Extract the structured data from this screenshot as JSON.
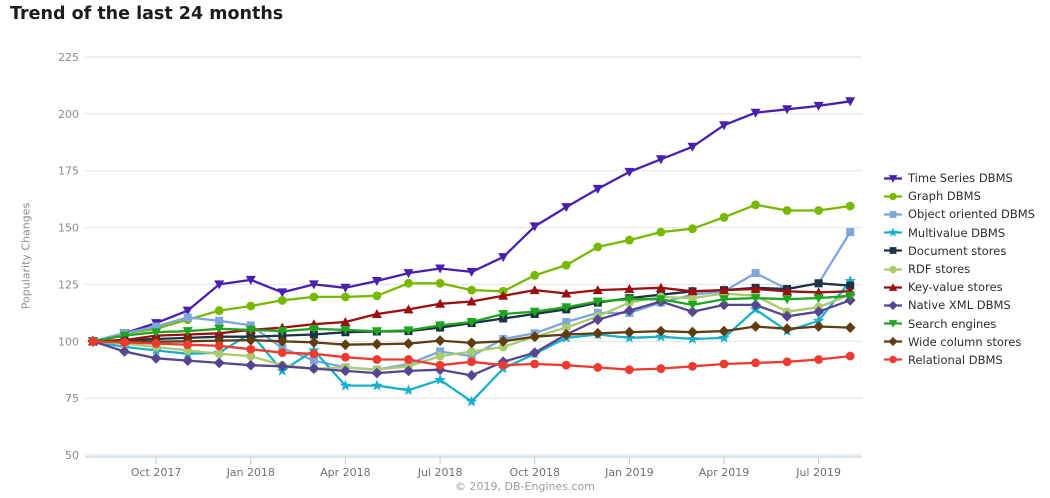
{
  "title": "Trend of the last 24 months",
  "footer": "© 2019, DB-Engines.com",
  "chart_data": {
    "type": "line",
    "title": "Trend of the last 24 months",
    "xlabel": "",
    "ylabel": "Popularity Changes",
    "ylim": [
      50,
      225
    ],
    "grid": true,
    "legend_position": "right",
    "y_ticks": [
      225,
      200,
      175,
      150,
      125,
      100,
      75,
      50
    ],
    "x": [
      "Aug 2017",
      "Sep 2017",
      "Oct 2017",
      "Nov 2017",
      "Dec 2017",
      "Jan 2018",
      "Feb 2018",
      "Mar 2018",
      "Apr 2018",
      "May 2018",
      "Jun 2018",
      "Jul 2018",
      "Aug 2018",
      "Sep 2018",
      "Oct 2018",
      "Nov 2018",
      "Dec 2018",
      "Jan 2019",
      "Feb 2019",
      "Mar 2019",
      "Apr 2019",
      "May 2019",
      "Jun 2019",
      "Jul 2019",
      "Aug 2019"
    ],
    "x_ticks": [
      {
        "i": 2,
        "label": "Oct 2017"
      },
      {
        "i": 5,
        "label": "Jan 2018"
      },
      {
        "i": 8,
        "label": "Apr 2018"
      },
      {
        "i": 11,
        "label": "Jul 2018"
      },
      {
        "i": 14,
        "label": "Oct 2018"
      },
      {
        "i": 17,
        "label": "Jan 2019"
      },
      {
        "i": 20,
        "label": "Apr 2019"
      },
      {
        "i": 23,
        "label": "Jul 2019"
      }
    ],
    "series": [
      {
        "name": "Time Series DBMS",
        "color": "#4a1fad",
        "marker": "triangle-down",
        "values": [
          100,
          103.5,
          108,
          113.5,
          125,
          127,
          121.5,
          125,
          123.5,
          126.5,
          130,
          132,
          130.5,
          137,
          150.5,
          159,
          167,
          174.5,
          180,
          185.5,
          195,
          200.5,
          202,
          203.5,
          205.5
        ]
      },
      {
        "name": "Graph DBMS",
        "color": "#76b900",
        "marker": "circle",
        "values": [
          100,
          103.5,
          105.5,
          109.5,
          113.5,
          115.5,
          118,
          119.5,
          119.5,
          120,
          125.5,
          125.5,
          122.5,
          122,
          129,
          133.5,
          141.5,
          144.5,
          148,
          149.5,
          154.5,
          160,
          157.5,
          157.5,
          159.5
        ]
      },
      {
        "name": "Object oriented DBMS",
        "color": "#7da7dc",
        "marker": "square",
        "values": [
          100,
          103.5,
          106.5,
          110.5,
          109,
          107,
          97,
          91.5,
          88.5,
          87.5,
          90,
          95.5,
          93.5,
          101,
          103.5,
          108.5,
          112.5,
          112.5,
          117,
          120.5,
          122,
          130,
          123,
          125.5,
          148
        ]
      },
      {
        "name": "Multivalue DBMS",
        "color": "#1ab0cc",
        "marker": "star",
        "values": [
          100,
          97.5,
          96,
          94.5,
          95,
          103.5,
          87,
          96,
          80.5,
          80.5,
          78.5,
          83,
          73.5,
          88,
          94.5,
          101.5,
          103,
          101.5,
          102,
          101,
          101.5,
          114,
          104.5,
          109,
          126.5
        ]
      },
      {
        "name": "Document stores",
        "color": "#1d3247",
        "marker": "square",
        "values": [
          100,
          100.5,
          101,
          101.5,
          102,
          102,
          102.5,
          103,
          104,
          104.3,
          104.5,
          106,
          108,
          110,
          112,
          114,
          117,
          119,
          120.5,
          122,
          122.5,
          123.5,
          123,
          125.5,
          124.5
        ]
      },
      {
        "name": "RDF stores",
        "color": "#a8cb6e",
        "marker": "circle",
        "values": [
          100,
          99,
          97.5,
          96,
          94.5,
          93.5,
          89.5,
          88,
          88.5,
          87.5,
          89,
          93.5,
          95.5,
          97.5,
          102,
          106,
          111,
          117,
          119.5,
          119,
          121,
          120,
          113,
          115,
          120.5
        ]
      },
      {
        "name": "Key-value stores",
        "color": "#9b0e11",
        "marker": "triangle-up",
        "values": [
          100,
          100.5,
          102.5,
          103,
          103.5,
          105,
          106,
          107.5,
          108.5,
          112,
          114,
          116.5,
          117.5,
          120,
          122.5,
          121,
          122.5,
          123,
          123.5,
          122,
          122.5,
          123,
          122,
          121.5,
          122
        ]
      },
      {
        "name": "Native XML DBMS",
        "color": "#574591",
        "marker": "diamond",
        "values": [
          100,
          95.5,
          92.5,
          91.5,
          90.5,
          89.5,
          89,
          88,
          87,
          86,
          87,
          87.5,
          85,
          91,
          95,
          103,
          109.5,
          113.5,
          117.5,
          113,
          116,
          116,
          111,
          113,
          118
        ]
      },
      {
        "name": "Search engines",
        "color": "#1fa520",
        "marker": "triangle-down",
        "values": [
          100,
          102.5,
          104,
          104.5,
          105.5,
          105,
          104.5,
          105.5,
          105,
          104.4,
          104.8,
          107,
          108.5,
          112,
          113,
          115,
          117.5,
          118.5,
          118.5,
          116,
          118.5,
          119,
          118.5,
          119,
          120
        ]
      },
      {
        "name": "Wide column stores",
        "color": "#603c12",
        "marker": "diamond",
        "values": [
          100,
          100,
          99.8,
          100,
          100.3,
          100.5,
          100,
          99.5,
          98.5,
          98.7,
          99,
          100.3,
          99.3,
          100,
          102,
          103,
          103.5,
          104,
          104.5,
          104,
          104.5,
          106.5,
          105.5,
          106.5,
          106
        ]
      },
      {
        "name": "Relational DBMS",
        "color": "#ef3a30",
        "marker": "circle",
        "values": [
          100,
          99.5,
          99,
          98.5,
          98,
          96.5,
          95,
          94.5,
          93,
          92,
          92,
          89.5,
          91,
          89.5,
          90,
          89.5,
          88.5,
          87.5,
          88,
          89,
          90,
          90.5,
          91,
          92,
          93.5
        ]
      }
    ]
  }
}
